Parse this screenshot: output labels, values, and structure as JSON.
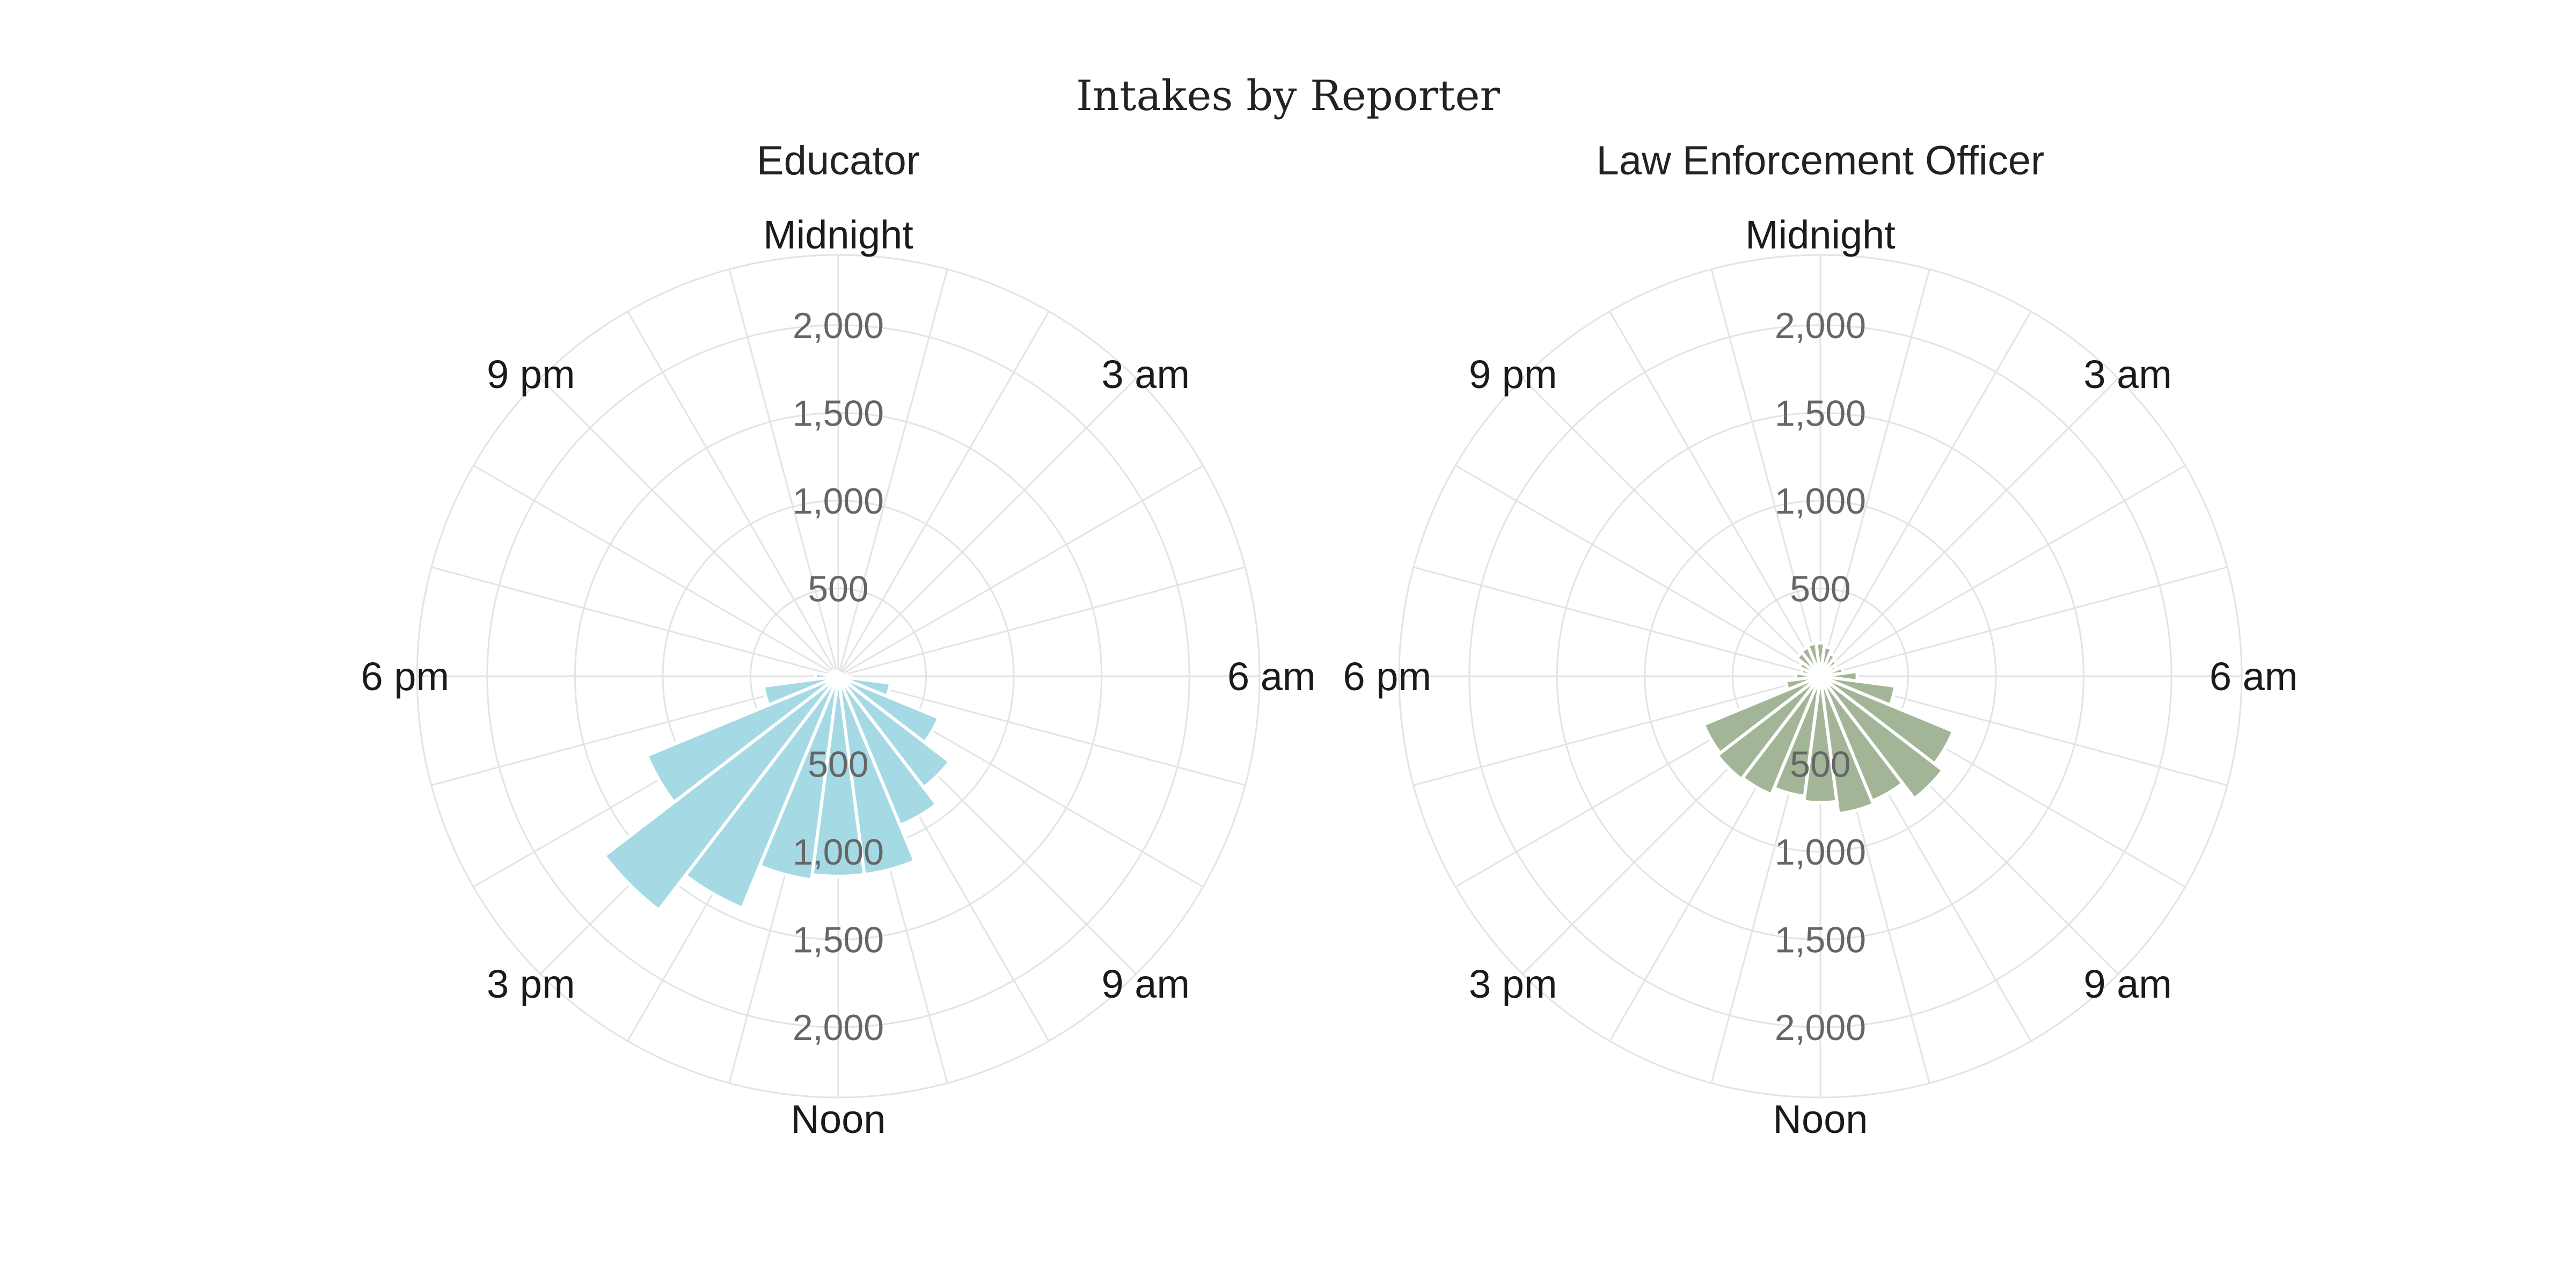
{
  "chart_data": {
    "type": "polar-bar",
    "title": "Intakes by Reporter",
    "hour_labels": [
      "Midnight",
      "3 am",
      "6 am",
      "9 am",
      "Noon",
      "3 pm",
      "6 pm",
      "9 pm"
    ],
    "radial_ticks": [
      "500",
      "1,000",
      "1,500",
      "2,000"
    ],
    "radial_tick_values": [
      500,
      1000,
      1500,
      2000
    ],
    "rmax": 2400,
    "grid": true,
    "panels": [
      {
        "title": "Educator",
        "color": "#a5d9e4",
        "hours": [
          0,
          1,
          2,
          3,
          4,
          5,
          6,
          7,
          8,
          9,
          10,
          11,
          12,
          13,
          14,
          15,
          16,
          17,
          18,
          19,
          20,
          21,
          22,
          23
        ],
        "values": [
          20,
          15,
          15,
          15,
          20,
          30,
          50,
          300,
          620,
          800,
          920,
          1140,
          1140,
          1170,
          1430,
          1680,
          1180,
          430,
          130,
          50,
          40,
          35,
          30,
          25
        ]
      },
      {
        "title": "Law Enforcement Officer",
        "color": "#a3b597",
        "hours": [
          0,
          1,
          2,
          3,
          4,
          5,
          6,
          7,
          8,
          9,
          10,
          11,
          12,
          13,
          14,
          15,
          16,
          17,
          18,
          19,
          20,
          21,
          22,
          23
        ],
        "values": [
          190,
          170,
          140,
          120,
          100,
          130,
          210,
          430,
          820,
          880,
          770,
          790,
          720,
          690,
          730,
          740,
          720,
          200,
          140,
          110,
          130,
          170,
          180,
          190
        ]
      }
    ]
  }
}
